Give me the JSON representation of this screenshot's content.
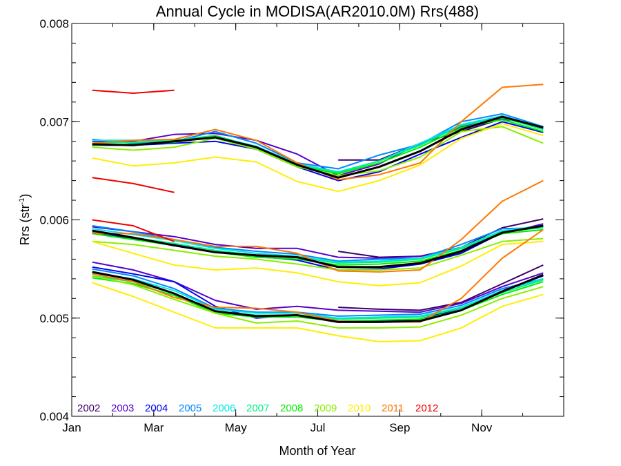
{
  "chart_data": {
    "type": "line",
    "title": "Annual Cycle in MODISA(AR2010.0M) Rrs(488)",
    "xlabel": "Month of Year",
    "ylabel": "Rrs (str",
    "ylabel_sup": "-1",
    "ylabel_close": ")",
    "xlim": [
      1,
      13
    ],
    "ylim": [
      0.004,
      0.008
    ],
    "x_ticks": [
      {
        "value": 1,
        "label": "Jan"
      },
      {
        "value": 3,
        "label": "Mar"
      },
      {
        "value": 5,
        "label": "May"
      },
      {
        "value": 7,
        "label": "Jul"
      },
      {
        "value": 9,
        "label": "Sep"
      },
      {
        "value": 11,
        "label": "Nov"
      }
    ],
    "y_ticks": [
      {
        "value": 0.004,
        "label": "0.004"
      },
      {
        "value": 0.005,
        "label": "0.005"
      },
      {
        "value": 0.006,
        "label": "0.006"
      },
      {
        "value": 0.007,
        "label": "0.007"
      },
      {
        "value": 0.008,
        "label": "0.008"
      }
    ],
    "grid": false,
    "legend_position": "bottom-left",
    "x": [
      1.5,
      2.5,
      3.5,
      4.5,
      5.5,
      6.5,
      7.5,
      8.5,
      9.5,
      10.5,
      11.5,
      12.5
    ],
    "series": [
      {
        "name": "2002",
        "color": "#3a006a",
        "lines": [
          [
            null,
            null,
            null,
            null,
            null,
            null,
            0.00661,
            0.00661,
            0.00678,
            0.0069,
            0.00703,
            0.00695
          ],
          [
            null,
            null,
            null,
            null,
            null,
            null,
            0.00568,
            0.00562,
            0.00563,
            0.00572,
            0.00592,
            0.00601
          ],
          [
            null,
            null,
            null,
            null,
            null,
            null,
            0.00511,
            0.00509,
            0.00508,
            0.00516,
            0.00535,
            0.00554
          ]
        ]
      },
      {
        "name": "2003",
        "color": "#5500cc",
        "lines": [
          [
            0.0068,
            0.0068,
            0.00687,
            0.00688,
            0.00681,
            0.00667,
            0.00645,
            0.00657,
            0.00678,
            0.00695,
            0.00705,
            0.00693
          ],
          [
            0.00593,
            0.00588,
            0.00583,
            0.00575,
            0.00571,
            0.00571,
            0.00562,
            0.00561,
            0.00563,
            0.00571,
            0.00586,
            0.00596
          ],
          [
            0.00557,
            0.00549,
            0.00537,
            0.00518,
            0.00509,
            0.00512,
            0.00508,
            0.00507,
            0.00506,
            0.00515,
            0.00532,
            0.00546
          ]
        ]
      },
      {
        "name": "2004",
        "color": "#0000ee",
        "lines": [
          [
            0.00676,
            0.00676,
            0.00678,
            0.0068,
            0.00672,
            0.00654,
            0.0064,
            0.00649,
            0.00667,
            0.00684,
            0.007,
            0.00689
          ],
          [
            0.00587,
            0.00581,
            0.00575,
            0.00567,
            0.00563,
            0.00559,
            0.00549,
            0.0055,
            0.00555,
            0.00566,
            0.00587,
            0.00594
          ],
          [
            0.00552,
            0.00545,
            0.00537,
            0.00512,
            0.005,
            0.00503,
            0.00496,
            0.00497,
            0.00499,
            0.0051,
            0.00528,
            0.00543
          ]
        ]
      },
      {
        "name": "2005",
        "color": "#0088ff",
        "lines": [
          [
            0.00682,
            0.00678,
            0.0068,
            0.0069,
            0.00678,
            0.00658,
            0.00652,
            0.00666,
            0.00677,
            0.007,
            0.00708,
            0.00695
          ],
          [
            0.00594,
            0.00588,
            0.0058,
            0.00572,
            0.00568,
            0.00565,
            0.00558,
            0.0056,
            0.00561,
            0.00575,
            0.00591,
            0.00592
          ],
          [
            0.0055,
            0.00543,
            0.0053,
            0.0051,
            0.00506,
            0.00506,
            0.00502,
            0.00503,
            0.00504,
            0.00513,
            0.0053,
            0.0054
          ]
        ]
      },
      {
        "name": "2006",
        "color": "#00e8e8",
        "lines": [
          [
            0.00681,
            0.00681,
            0.00681,
            0.00685,
            0.00675,
            0.00657,
            0.00649,
            0.0066,
            0.00678,
            0.00697,
            0.00706,
            0.00694
          ],
          [
            0.00591,
            0.00585,
            0.00579,
            0.00571,
            0.00566,
            0.00563,
            0.00557,
            0.00558,
            0.00561,
            0.00572,
            0.00589,
            0.00594
          ],
          [
            0.00546,
            0.0054,
            0.00528,
            0.00509,
            0.00505,
            0.00505,
            0.005,
            0.00501,
            0.00502,
            0.00511,
            0.00528,
            0.0054
          ]
        ]
      },
      {
        "name": "2007",
        "color": "#00ee88",
        "lines": [
          [
            0.00678,
            0.00679,
            0.00681,
            0.00686,
            0.00674,
            0.00656,
            0.00648,
            0.0066,
            0.00676,
            0.00696,
            0.00704,
            0.00692
          ],
          [
            0.00588,
            0.00582,
            0.00576,
            0.00569,
            0.00564,
            0.00562,
            0.00556,
            0.00557,
            0.0056,
            0.00571,
            0.00588,
            0.00592
          ],
          [
            0.00543,
            0.00537,
            0.00525,
            0.00507,
            0.00503,
            0.00503,
            0.00499,
            0.005,
            0.00501,
            0.0051,
            0.00526,
            0.00539
          ]
        ]
      },
      {
        "name": "2008",
        "color": "#00ee00",
        "lines": [
          [
            0.00676,
            0.00677,
            0.00679,
            0.00685,
            0.00673,
            0.00655,
            0.00647,
            0.00658,
            0.00674,
            0.00694,
            0.00702,
            0.0069
          ],
          [
            0.00586,
            0.0058,
            0.00574,
            0.00567,
            0.00562,
            0.0056,
            0.00554,
            0.00555,
            0.00558,
            0.00569,
            0.00586,
            0.0059
          ],
          [
            0.00541,
            0.00535,
            0.00523,
            0.00505,
            0.00501,
            0.00501,
            0.00497,
            0.00498,
            0.00499,
            0.00508,
            0.00524,
            0.00537
          ]
        ]
      },
      {
        "name": "2009",
        "color": "#88ee00",
        "lines": [
          [
            0.00674,
            0.00671,
            0.00674,
            0.00683,
            0.00672,
            0.00654,
            0.00645,
            0.0065,
            0.00664,
            0.0069,
            0.00695,
            0.00678
          ],
          [
            0.00578,
            0.00575,
            0.00569,
            0.00563,
            0.0056,
            0.00555,
            0.00549,
            0.00549,
            0.00551,
            0.00564,
            0.00578,
            0.00581
          ],
          [
            0.00543,
            0.00534,
            0.00519,
            0.00505,
            0.00495,
            0.00497,
            0.0049,
            0.0049,
            0.00491,
            0.00503,
            0.0052,
            0.00532
          ]
        ]
      },
      {
        "name": "2010",
        "color": "#ffee00",
        "lines": [
          [
            0.00663,
            0.00655,
            0.00658,
            0.00664,
            0.00659,
            0.00639,
            0.00629,
            0.0064,
            0.00656,
            0.00683,
            0.00698,
            0.00686
          ],
          [
            0.00578,
            0.00566,
            0.00554,
            0.00549,
            0.00551,
            0.00546,
            0.00537,
            0.00533,
            0.00536,
            0.00553,
            0.00575,
            0.00578
          ],
          [
            0.00536,
            0.00522,
            0.00506,
            0.0049,
            0.0049,
            0.0049,
            0.00482,
            0.00476,
            0.00477,
            0.0049,
            0.00512,
            0.00524
          ]
        ]
      },
      {
        "name": "2011",
        "color": "#ff7700",
        "lines": [
          [
            0.00678,
            0.00681,
            0.00682,
            0.00692,
            0.00681,
            0.00658,
            0.00641,
            0.00646,
            0.00658,
            0.007,
            0.00735,
            0.00738
          ],
          [
            0.00586,
            0.00586,
            0.0058,
            0.00573,
            0.00573,
            0.00566,
            0.00548,
            0.00547,
            0.00549,
            0.0058,
            0.00619,
            0.0064
          ],
          [
            0.00545,
            0.00537,
            0.00521,
            0.00511,
            0.0051,
            0.00506,
            0.00497,
            0.00496,
            0.00496,
            0.0052,
            0.00561,
            0.0059
          ]
        ]
      },
      {
        "name": "2012",
        "color": "#ee0000",
        "lines": [
          [
            0.00732,
            0.00729,
            0.00732,
            null,
            null,
            null,
            null,
            null,
            null,
            null,
            null,
            null
          ],
          [
            0.00643,
            0.00637,
            0.00628,
            null,
            null,
            null,
            null,
            null,
            null,
            null,
            null,
            null
          ],
          [
            0.006,
            0.00594,
            0.00578,
            null,
            null,
            null,
            null,
            null,
            null,
            null,
            null,
            null
          ]
        ]
      }
    ],
    "mean": {
      "color": "#000000",
      "lines": [
        [
          0.00677,
          0.00676,
          0.0068,
          0.00684,
          0.00674,
          0.00656,
          0.00643,
          0.00654,
          0.0067,
          0.00692,
          0.00705,
          0.00694
        ],
        [
          0.00589,
          0.00582,
          0.00574,
          0.00567,
          0.00564,
          0.00562,
          0.00552,
          0.00552,
          0.00556,
          0.00568,
          0.00587,
          0.00594
        ],
        [
          0.00547,
          0.00539,
          0.00525,
          0.00507,
          0.00502,
          0.00503,
          0.00496,
          0.00496,
          0.00497,
          0.00508,
          0.00527,
          0.00544
        ]
      ]
    }
  }
}
